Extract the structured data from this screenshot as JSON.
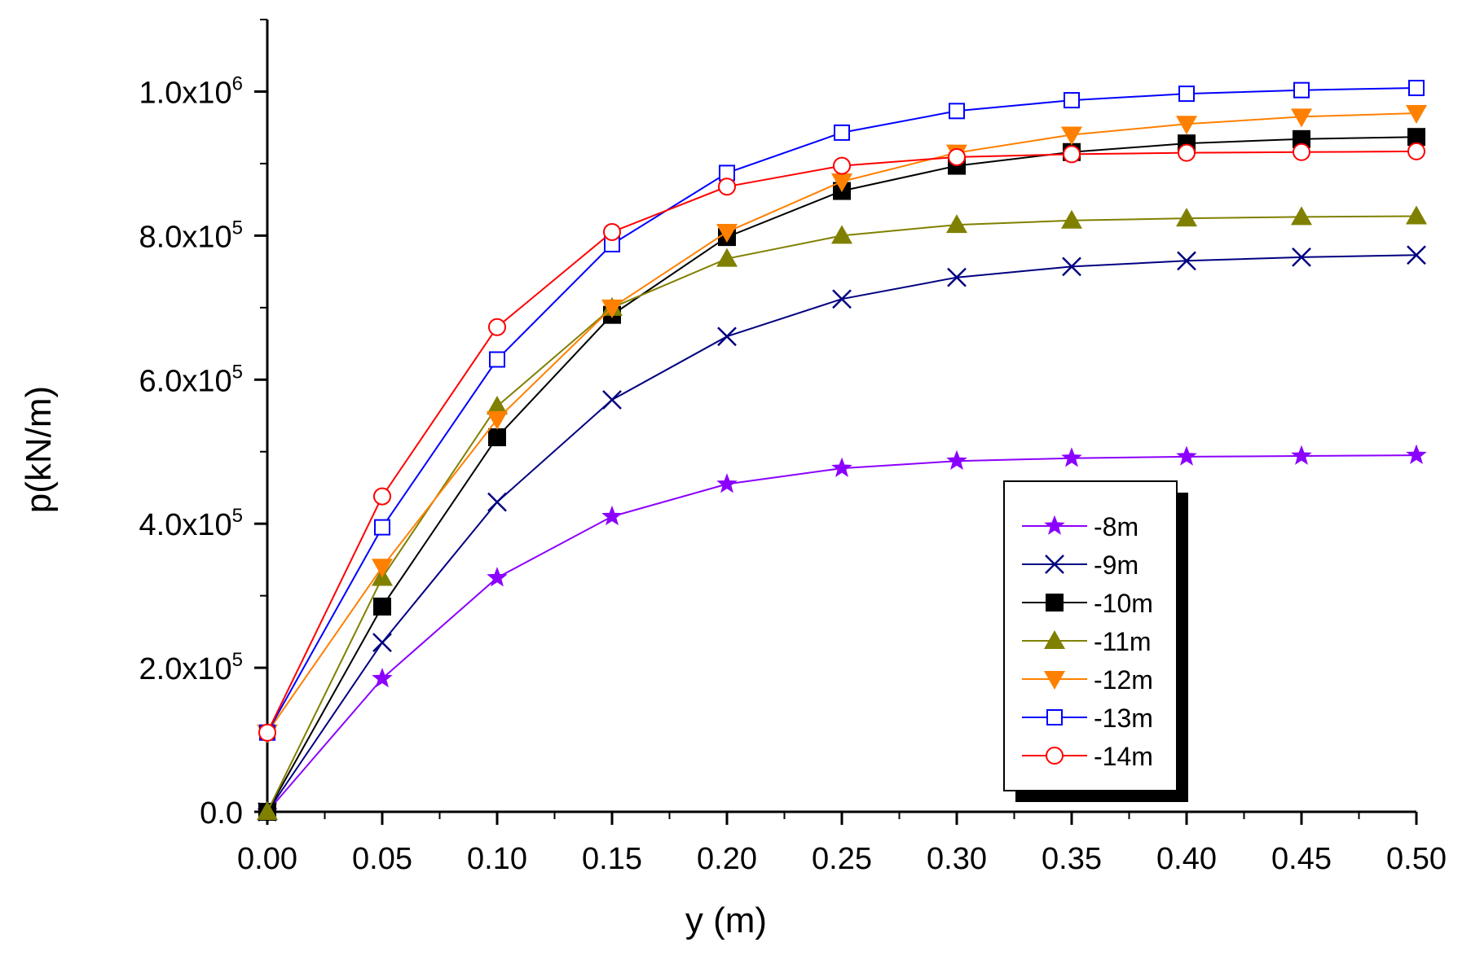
{
  "chart_data": {
    "type": "line",
    "xlabel": "y (m)",
    "ylabel": "p(kN/m)",
    "xlim": [
      0,
      0.5
    ],
    "ylim": [
      0,
      1100000
    ],
    "x_ticks": [
      0,
      0.05,
      0.1,
      0.15,
      0.2,
      0.25,
      0.3,
      0.35,
      0.4,
      0.45,
      0.5
    ],
    "x_tick_labels": [
      "0.00",
      "0.05",
      "0.10",
      "0.15",
      "0.20",
      "0.25",
      "0.30",
      "0.35",
      "0.40",
      "0.45",
      "0.50"
    ],
    "y_ticks": [
      0,
      200000,
      400000,
      600000,
      800000,
      1000000
    ],
    "y_tick_labels": [
      {
        "base": "0.0",
        "exp": ""
      },
      {
        "base": "2.0x10",
        "exp": "5"
      },
      {
        "base": "4.0x10",
        "exp": "5"
      },
      {
        "base": "6.0x10",
        "exp": "5"
      },
      {
        "base": "8.0x10",
        "exp": "5"
      },
      {
        "base": "1.0x10",
        "exp": "6"
      }
    ],
    "legend_position": "lower-right",
    "x": [
      0,
      0.05,
      0.1,
      0.15,
      0.2,
      0.25,
      0.3,
      0.35,
      0.4,
      0.45,
      0.5
    ],
    "series": [
      {
        "name": "-8m",
        "color": "#8B00FF",
        "marker": "star",
        "values": [
          0,
          185000,
          325000,
          410000,
          455000,
          477000,
          487000,
          491000,
          493000,
          494000,
          495000
        ]
      },
      {
        "name": "-9m",
        "color": "#000080",
        "marker": "x",
        "values": [
          0,
          235000,
          430000,
          572000,
          660000,
          712000,
          742000,
          757000,
          765000,
          770000,
          773000
        ]
      },
      {
        "name": "-10m",
        "color": "#000000",
        "marker": "square-filled",
        "values": [
          0,
          285000,
          520000,
          690000,
          798000,
          862000,
          897000,
          916000,
          928000,
          934000,
          937000
        ]
      },
      {
        "name": "-11m",
        "color": "#808000",
        "marker": "triangle-up",
        "values": [
          0,
          325000,
          563000,
          700000,
          768000,
          800000,
          815000,
          821000,
          824000,
          826000,
          827000
        ]
      },
      {
        "name": "-12m",
        "color": "#FF8000",
        "marker": "triangle-down",
        "values": [
          110000,
          340000,
          545000,
          700000,
          805000,
          875000,
          915000,
          940000,
          955000,
          965000,
          970000
        ]
      },
      {
        "name": "-13m",
        "color": "#0000FF",
        "marker": "square-open",
        "values": [
          110000,
          395000,
          628000,
          788000,
          887000,
          943000,
          973000,
          988000,
          997000,
          1002000,
          1005000
        ]
      },
      {
        "name": "-14m",
        "color": "#FF0000",
        "marker": "circle-open",
        "values": [
          110000,
          438000,
          673000,
          805000,
          868000,
          897000,
          909000,
          913000,
          915000,
          916000,
          917000
        ]
      }
    ]
  }
}
